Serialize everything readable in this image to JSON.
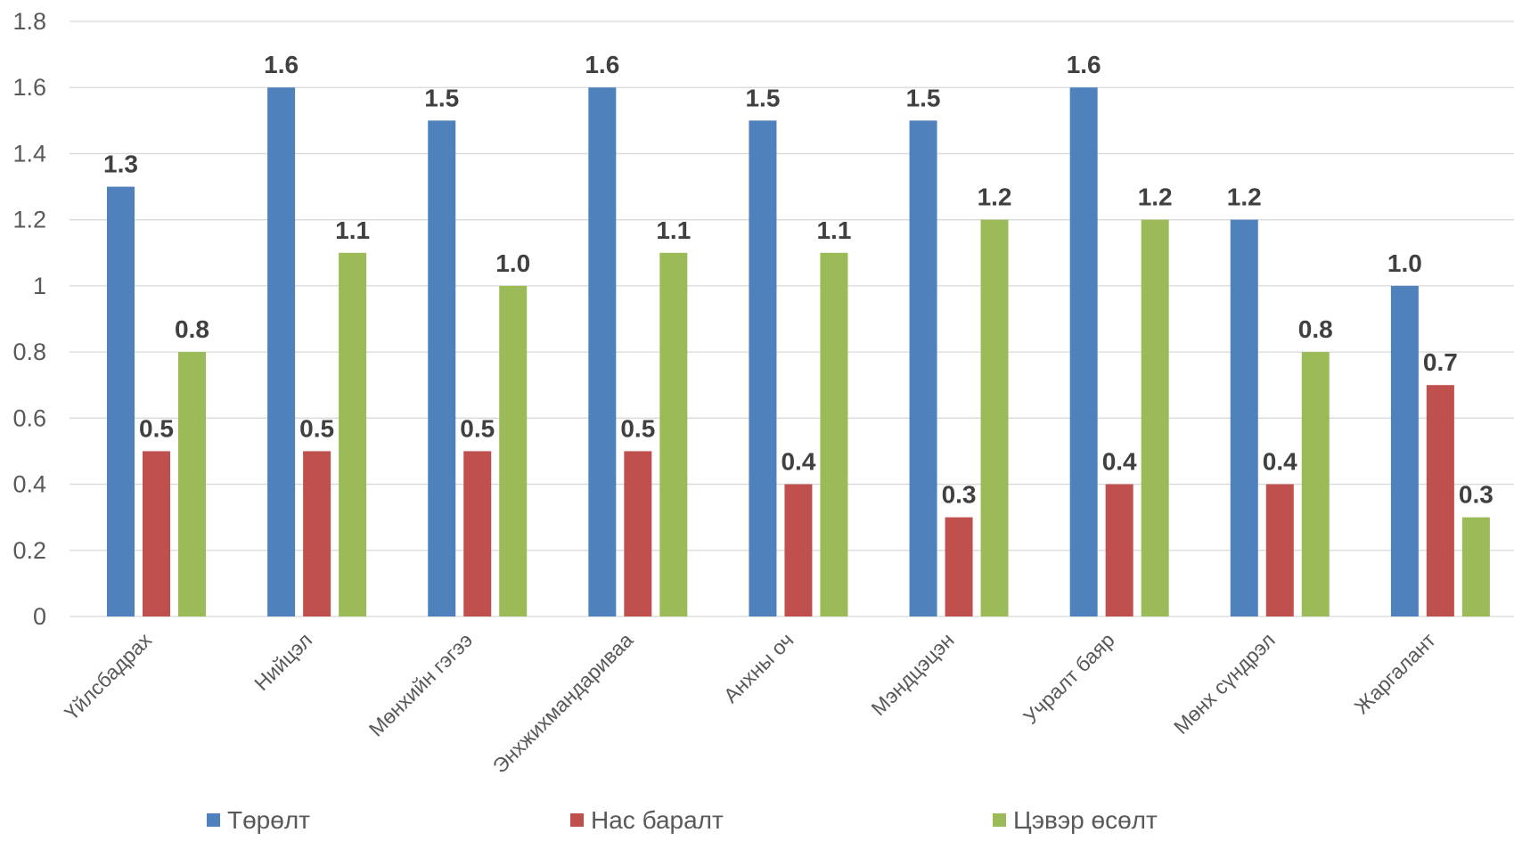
{
  "chart_data": {
    "type": "bar",
    "title": "",
    "xlabel": "",
    "ylabel": "",
    "ylim": [
      0,
      1.8
    ],
    "yticks": [
      "0",
      "0.2",
      "0.4",
      "0.6",
      "0.8",
      "1",
      "1.2",
      "1.4",
      "1.6",
      "1.8"
    ],
    "grid": true,
    "legend_position": "bottom",
    "categories": [
      "Үйлсбадрах",
      "Нийцэл",
      "Мөнхийн гэгээ",
      "Энхжихмандариваа",
      "Анхны оч",
      "Мэндцэцэн",
      "Учралт баяр",
      "Мөнх сүндрэл",
      "Жаргалант"
    ],
    "series": [
      {
        "name": "Төрөлт",
        "color": "#4f81bd",
        "values": [
          1.3,
          1.6,
          1.5,
          1.6,
          1.5,
          1.5,
          1.6,
          1.2,
          1.0
        ],
        "labels": [
          "1.3",
          "1.6",
          "1.5",
          "1.6",
          "1.5",
          "1.5",
          "1.6",
          "1.2",
          "1.0"
        ]
      },
      {
        "name": "Нас баралт",
        "color": "#c0504d",
        "values": [
          0.5,
          0.5,
          0.5,
          0.5,
          0.4,
          0.3,
          0.4,
          0.4,
          0.7
        ],
        "labels": [
          "0.5",
          "0.5",
          "0.5",
          "0.5",
          "0.4",
          "0.3",
          "0.4",
          "0.4",
          "0.7"
        ]
      },
      {
        "name": "Цэвэр өсөлт",
        "color": "#9bbb59",
        "values": [
          0.8,
          1.1,
          1.0,
          1.1,
          1.1,
          1.2,
          1.2,
          0.8,
          0.3
        ],
        "labels": [
          "0.8",
          "1.1",
          "1.0",
          "1.1",
          "1.1",
          "1.2",
          "1.2",
          "0.8",
          "0.3"
        ]
      }
    ]
  }
}
